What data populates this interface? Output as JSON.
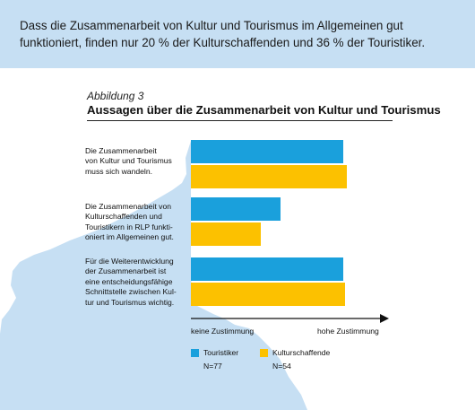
{
  "header": {
    "text": "Dass die Zusammenarbeit von Kultur und Tourismus im Allgemeinen gut funktioniert, finden nur 20 % der Kulturschaffenden und 36 % der Touristiker."
  },
  "figure": {
    "label": "Abbildung 3",
    "title": "Aussagen über die Zusammenarbeit von Kultur und Tourismus"
  },
  "colors": {
    "touristiker": "#1aa0dc",
    "kulturschaffende": "#fcc100",
    "map": "#c6dff3",
    "banner": "#c6dff3"
  },
  "chart_data": {
    "type": "bar",
    "orientation": "horizontal",
    "categories": [
      "Die Zusammenarbeit von Kultur und Tourismus muss sich wandeln.",
      "Die Zusammenarbeit von Kulturschaffenden und Touristikern in RLP funktioniert im Allgemeinen gut.",
      "Für die Weiterentwicklung der Zusammenarbeit ist eine entscheidungsfähige Schnittstelle zwischen Kultur und Tourismus wichtig."
    ],
    "category_lines": [
      [
        "Die Zusammenarbeit",
        "von Kultur und Tourismus",
        "muss sich wandeln."
      ],
      [
        "Die Zusammenarbeit von",
        "Kulturschaffenden und",
        "Touristikern in RLP funkti-",
        "oniert im Allgemeinen gut."
      ],
      [
        "Für die Weiterentwicklung",
        "der Zusammenarbeit ist",
        "eine entscheidungsfähige",
        "Schnittstelle zwischen Kul-",
        "tur und Tourismus wichtig."
      ]
    ],
    "series": [
      {
        "name": "Touristiker",
        "n": "N=77",
        "values": [
          0.85,
          0.5,
          0.85
        ]
      },
      {
        "name": "Kulturschaffende",
        "n": "N=54",
        "values": [
          0.87,
          0.39,
          0.86
        ]
      }
    ],
    "xlim": [
      0,
      1
    ],
    "x_min_label": "keine Zustimmung",
    "x_max_label": "hohe Zustimmung",
    "grid": false,
    "legend_position": "bottom-left"
  }
}
